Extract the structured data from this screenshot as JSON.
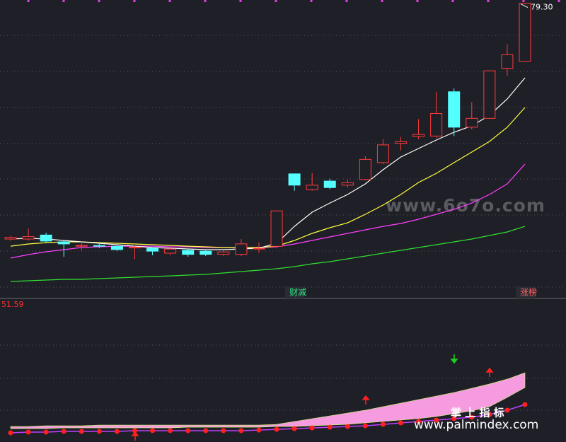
{
  "chart_data": [
    {
      "type": "candlestick",
      "open": [
        50.0,
        50.0,
        50.5,
        49.65,
        49.2,
        49.2,
        49.1,
        48.9,
        48.85,
        48.25,
        48.6,
        48.5,
        48.1,
        48.1,
        48.85,
        49.1,
        58.1,
        56.15,
        57.2,
        56.7,
        57.4,
        59.5,
        61.9,
        62.75,
        62.8,
        68.3,
        63.9,
        65.0,
        71.2,
        72.1
      ],
      "high": [
        50.4,
        51.3,
        50.8,
        49.8,
        49.7,
        49.5,
        49.3,
        49.2,
        49.0,
        49.0,
        48.8,
        48.7,
        48.6,
        50.0,
        49.6,
        53.5,
        58.1,
        58.2,
        57.5,
        57.4,
        60.3,
        62.4,
        62.7,
        64.9,
        68.3,
        68.7,
        67.0,
        70.9,
        74.2,
        79.3
      ],
      "low": [
        49.8,
        49.8,
        49.6,
        47.8,
        48.6,
        48.9,
        48.5,
        47.5,
        48.0,
        48.0,
        47.8,
        47.9,
        47.9,
        47.9,
        48.3,
        48.9,
        56.0,
        56.0,
        56.2,
        56.4,
        57.3,
        59.3,
        61.0,
        62.4,
        62.6,
        62.8,
        63.6,
        64.9,
        70.3,
        72.1
      ],
      "close": [
        50.2,
        50.3,
        49.75,
        49.4,
        49.2,
        49.15,
        48.7,
        49.0,
        48.5,
        48.75,
        48.1,
        48.1,
        48.4,
        49.4,
        48.85,
        53.5,
        56.7,
        56.7,
        56.4,
        57.0,
        59.9,
        61.7,
        62.1,
        63.0,
        65.6,
        63.9,
        65.0,
        70.9,
        72.9,
        79.3
      ],
      "up_color": "#ff3b3b",
      "down_color": "#54ffff",
      "series": [
        {
          "color": "#ffffff",
          "values": [
            50.0,
            50.1,
            50.0,
            49.83,
            49.65,
            49.48,
            49.3,
            49.12,
            48.95,
            48.86,
            48.77,
            48.69,
            48.69,
            48.77,
            48.86,
            49.48,
            51.58,
            53.34,
            54.48,
            55.54,
            56.86,
            58.61,
            60.2,
            61.25,
            62.3,
            63.27,
            64.06,
            65.38,
            67.4,
            70.04
          ]
        },
        {
          "color": "#ffff40",
          "values": [
            49.12,
            49.39,
            49.56,
            49.65,
            49.65,
            49.56,
            49.48,
            49.39,
            49.3,
            49.21,
            49.12,
            49.04,
            48.95,
            48.95,
            48.95,
            49.12,
            49.83,
            50.71,
            51.41,
            52.02,
            53.08,
            54.22,
            55.54,
            57.03,
            58.17,
            59.49,
            60.81,
            62.13,
            63.89,
            66.35
          ]
        },
        {
          "color": "#ff40ff",
          "values": [
            47.63,
            48.07,
            48.42,
            48.69,
            48.95,
            49.04,
            49.12,
            49.12,
            49.12,
            49.04,
            49.04,
            48.95,
            48.95,
            48.95,
            48.95,
            49.04,
            49.39,
            49.83,
            50.27,
            50.71,
            51.15,
            51.58,
            51.94,
            52.46,
            53.08,
            53.69,
            54.48,
            55.54,
            56.86,
            59.32
          ]
        },
        {
          "color": "#30e030",
          "values": [
            44.73,
            44.82,
            44.91,
            45.0,
            45.0,
            45.08,
            45.17,
            45.26,
            45.35,
            45.43,
            45.52,
            45.61,
            45.79,
            45.96,
            46.14,
            46.31,
            46.58,
            46.93,
            47.19,
            47.54,
            47.89,
            48.25,
            48.6,
            48.95,
            49.3,
            49.65,
            50.0,
            50.44,
            50.88,
            51.58
          ]
        }
      ],
      "ylim": [
        42.8,
        79.7
      ],
      "max_label": {
        "value": 79.3,
        "label": "79.30"
      },
      "annotations": [
        "财减",
        "涨榜"
      ],
      "watermark": "www.6o7o.com"
    },
    {
      "type": "line",
      "top_label": "51.59",
      "ylim": [
        38.0,
        51.59
      ],
      "band_color": "#f79be0",
      "band_upper": [
        39.18,
        39.18,
        39.25,
        39.25,
        39.25,
        39.32,
        39.32,
        39.32,
        39.32,
        39.32,
        39.32,
        39.32,
        39.32,
        39.32,
        39.32,
        39.39,
        39.67,
        39.95,
        40.23,
        40.51,
        40.79,
        41.13,
        41.48,
        41.83,
        42.18,
        42.53,
        42.95,
        43.37,
        43.85,
        44.48
      ],
      "band_lower": [
        38.97,
        38.97,
        38.97,
        39.04,
        39.04,
        39.04,
        39.04,
        39.04,
        39.04,
        39.04,
        39.11,
        39.11,
        39.11,
        39.11,
        39.11,
        39.18,
        39.18,
        39.25,
        39.32,
        39.39,
        39.53,
        39.67,
        39.81,
        39.95,
        40.16,
        40.44,
        40.72,
        41.13,
        42.04,
        43.02
      ],
      "series": [
        {
          "color": "#ff2020",
          "values": [
            38.56,
            38.63,
            38.63,
            38.7,
            38.7,
            38.7,
            38.7,
            38.77,
            38.77,
            38.77,
            38.77,
            38.77,
            38.77,
            38.77,
            38.83,
            38.9,
            38.97,
            39.04,
            39.11,
            39.18,
            39.25,
            39.39,
            39.53,
            39.67,
            39.81,
            39.95,
            40.09,
            40.37,
            40.79,
            41.34
          ]
        }
      ],
      "footer_title": "掌 上 指 标",
      "footer_url": "www.palmindex.com"
    }
  ]
}
